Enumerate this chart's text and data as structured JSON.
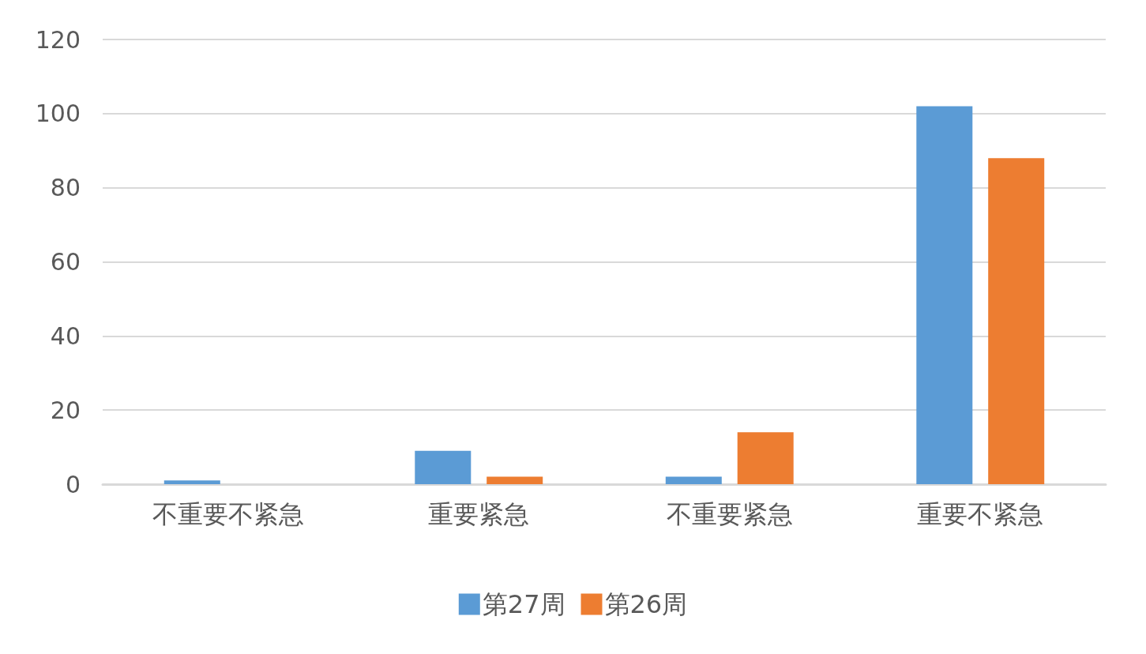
{
  "chart_data": {
    "type": "bar",
    "categories": [
      "不重要不紧急",
      "重要紧急",
      "不重要紧急",
      "重要不紧急"
    ],
    "series": [
      {
        "name": "第27周",
        "color": "#5b9bd5",
        "values": [
          1,
          9,
          2,
          102
        ]
      },
      {
        "name": "第26周",
        "color": "#ed7d31",
        "values": [
          0,
          2,
          14,
          88
        ]
      }
    ],
    "ylim": [
      0,
      120
    ],
    "yticks": [
      0,
      20,
      40,
      60,
      80,
      100,
      120
    ],
    "grid": "y",
    "legend": "bottom"
  }
}
